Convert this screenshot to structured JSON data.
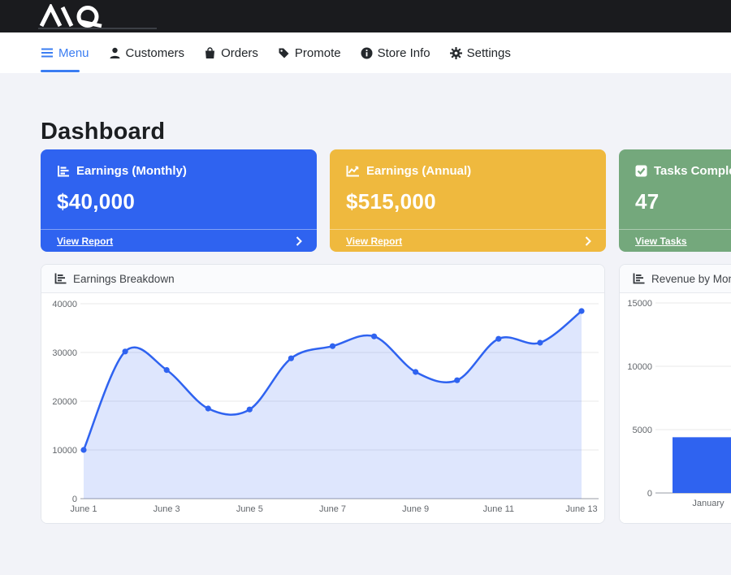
{
  "brand": {
    "logo_text": "AIQ"
  },
  "colors": {
    "nav_active": "#3b7df2",
    "brand_bar": "#1a1b1e",
    "page_background": "#f2f3f8"
  },
  "nav": {
    "items": [
      {
        "label": "Menu",
        "active": true
      },
      {
        "label": "Customers",
        "active": false
      },
      {
        "label": "Orders",
        "active": false
      },
      {
        "label": "Promote",
        "active": false
      },
      {
        "label": "Store Info",
        "active": false
      },
      {
        "label": "Settings",
        "active": false
      }
    ]
  },
  "page": {
    "title": "Dashboard"
  },
  "stat_cards": [
    {
      "title": "Earnings (Monthly)",
      "value": "$40,000",
      "link_label": "View Report",
      "color": "#2f63f0",
      "icon": "bar-chart-icon"
    },
    {
      "title": "Earnings (Annual)",
      "value": "$515,000",
      "link_label": "View Report",
      "color": "#efb93e",
      "icon": "line-chart-icon"
    },
    {
      "title": "Tasks Completed",
      "value": "47",
      "link_label": "View Tasks",
      "color": "#74a87c",
      "icon": "check-square-icon"
    }
  ],
  "chart_data": [
    {
      "type": "line",
      "title": "Earnings Breakdown",
      "categories": [
        "June 1",
        "June 2",
        "June 3",
        "June 4",
        "June 5",
        "June 6",
        "June 7",
        "June 8",
        "June 9",
        "June 10",
        "June 11",
        "June 12",
        "June 13"
      ],
      "values": [
        10000,
        30200,
        26400,
        18500,
        18300,
        28800,
        31300,
        33300,
        26000,
        24300,
        32800,
        32000,
        38500
      ],
      "xtick_labels": [
        "June 1",
        "June 3",
        "June 5",
        "June 7",
        "June 9",
        "June 11",
        "June 13"
      ],
      "xtick_every": 2,
      "ylim": [
        0,
        40000
      ],
      "yticks": [
        0,
        10000,
        20000,
        30000,
        40000
      ],
      "line_color": "#2f63f0",
      "fill_color": "rgba(47,99,240,0.16)",
      "grid": true,
      "legend": "none"
    },
    {
      "type": "bar",
      "title": "Revenue by Month",
      "categories": [
        "January"
      ],
      "values": [
        4400
      ],
      "ylim": [
        0,
        15000
      ],
      "yticks": [
        0,
        5000,
        10000,
        15000
      ],
      "bar_color": "#2f63f0",
      "grid": true,
      "legend": "none"
    }
  ]
}
